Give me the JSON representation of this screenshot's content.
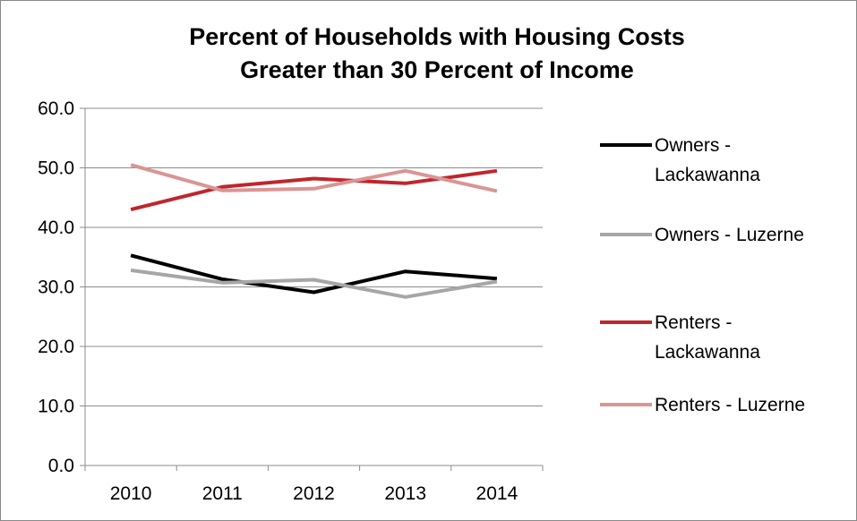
{
  "chart_data": {
    "type": "line",
    "title_lines": [
      "Percent of Households with Housing Costs",
      "Greater than 30 Percent of Income"
    ],
    "categories": [
      "2010",
      "2011",
      "2012",
      "2013",
      "2014"
    ],
    "ylim": [
      0,
      60
    ],
    "yticks": [
      "0.0",
      "10.0",
      "20.0",
      "30.0",
      "40.0",
      "50.0",
      "60.0"
    ],
    "grid": true,
    "legend_position": "right",
    "series": [
      {
        "name_lines": [
          "Owners -",
          "Lackawanna"
        ],
        "color": "#000000",
        "values": [
          35.3,
          31.3,
          29.1,
          32.6,
          31.4
        ]
      },
      {
        "name_lines": [
          "Owners - Luzerne"
        ],
        "color": "#a6a6a6",
        "values": [
          32.8,
          30.7,
          31.2,
          28.3,
          30.9
        ]
      },
      {
        "name_lines": [
          "Renters -",
          "Lackawanna"
        ],
        "color": "#c0262c",
        "values": [
          43.0,
          46.8,
          48.2,
          47.4,
          49.5
        ]
      },
      {
        "name_lines": [
          "Renters - Luzerne"
        ],
        "color": "#d99594",
        "values": [
          50.5,
          46.2,
          46.5,
          49.5,
          46.1
        ]
      }
    ]
  }
}
